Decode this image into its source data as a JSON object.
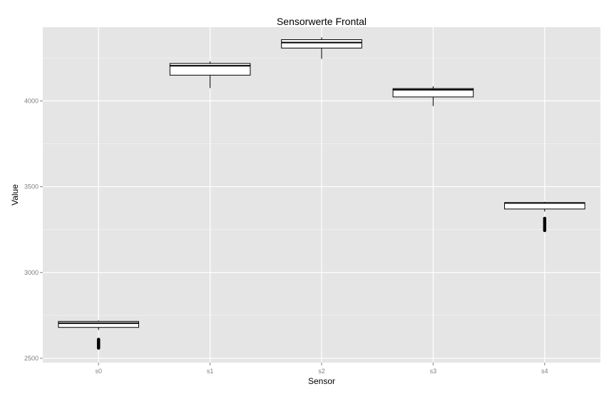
{
  "chart_data": {
    "type": "box",
    "title": "Sensorwerte Frontal",
    "xlabel": "Sensor",
    "ylabel": "Value",
    "categories": [
      "s0",
      "s1",
      "s2",
      "s3",
      "s4"
    ],
    "ylim": [
      2475,
      4430
    ],
    "y_ticks": [
      2500,
      3000,
      3500,
      4000
    ],
    "y_tick_labels": [
      "2500",
      "3000",
      "3500",
      "4000"
    ],
    "grid": true,
    "boxes": [
      {
        "name": "s0",
        "min": 2665,
        "q1": 2680,
        "median": 2705,
        "q3": 2715,
        "max": 2720,
        "outliers": [
          2560,
          2565,
          2570,
          2575,
          2580,
          2585,
          2590,
          2595,
          2600,
          2605,
          2610
        ]
      },
      {
        "name": "s1",
        "min": 4075,
        "q1": 4150,
        "median": 4205,
        "q3": 4218,
        "max": 4230,
        "outliers": []
      },
      {
        "name": "s2",
        "min": 4245,
        "q1": 4308,
        "median": 4340,
        "q3": 4357,
        "max": 4370,
        "outliers": []
      },
      {
        "name": "s3",
        "min": 3970,
        "q1": 4023,
        "median": 4065,
        "q3": 4072,
        "max": 4085,
        "outliers": []
      },
      {
        "name": "s4",
        "min": 3355,
        "q1": 3370,
        "median": 3405,
        "q3": 3407,
        "max": 3412,
        "outliers": [
          3245,
          3255,
          3265,
          3275,
          3285,
          3295,
          3305,
          3315
        ]
      }
    ],
    "colors": {
      "panel_background": "#e5e5e5",
      "grid_major": "#ffffff",
      "grid_minor": "#f2f2f2",
      "box_fill": "#ffffff",
      "box_stroke": "#000000"
    }
  }
}
